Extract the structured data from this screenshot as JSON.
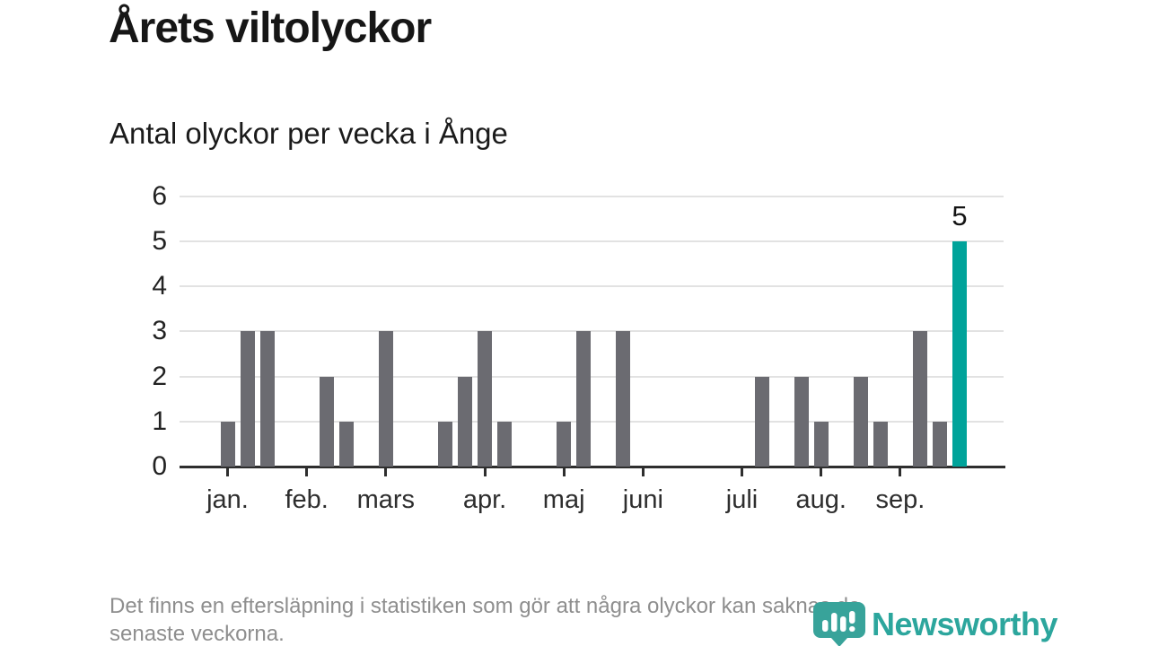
{
  "header": {
    "title": "Årets viltolyckor",
    "subtitle": "Antal olyckor per vecka i Ånge"
  },
  "chart_data": {
    "type": "bar",
    "title": "Årets viltolyckor",
    "subtitle": "Antal olyckor per vecka i Ånge",
    "x_unit": "vecka",
    "weeks": [
      1,
      2,
      3,
      4,
      5,
      6,
      7,
      8,
      9,
      10,
      11,
      12,
      13,
      14,
      15,
      16,
      17,
      18,
      19,
      20,
      21,
      22,
      23,
      24,
      25,
      26,
      27,
      28,
      29,
      30,
      31,
      32,
      33,
      34,
      35,
      36,
      37,
      38
    ],
    "values": [
      1,
      3,
      3,
      0,
      0,
      2,
      1,
      0,
      3,
      0,
      0,
      1,
      2,
      3,
      1,
      0,
      0,
      1,
      3,
      0,
      3,
      0,
      0,
      0,
      0,
      0,
      0,
      2,
      0,
      2,
      1,
      0,
      2,
      1,
      0,
      3,
      1,
      5
    ],
    "month_ticks": [
      {
        "label": "jan.",
        "week": 1
      },
      {
        "label": "feb.",
        "week": 5
      },
      {
        "label": "mars",
        "week": 9
      },
      {
        "label": "apr.",
        "week": 14
      },
      {
        "label": "maj",
        "week": 18
      },
      {
        "label": "juni",
        "week": 22
      },
      {
        "label": "juli",
        "week": 27
      },
      {
        "label": "aug.",
        "week": 31
      },
      {
        "label": "sep.",
        "week": 35
      }
    ],
    "y_ticks": [
      0,
      1,
      2,
      3,
      4,
      5,
      6
    ],
    "ylim": [
      0,
      6
    ],
    "grid": "horizontal",
    "legend": "none",
    "highlight": {
      "week": 38,
      "value": 5,
      "label": "5"
    },
    "colors": {
      "bar": "#6b6b71",
      "highlight": "#00a39a",
      "gridline": "#e2e2e2",
      "axis": "#2e2e2e"
    }
  },
  "footer": {
    "note_line1": "Det finns en eftersläpning i statistiken som gör att några olyckor kan saknas de",
    "note_line2": "senaste veckorna.",
    "brand": "Newsworthy",
    "brand_color": "#2ca69d"
  }
}
